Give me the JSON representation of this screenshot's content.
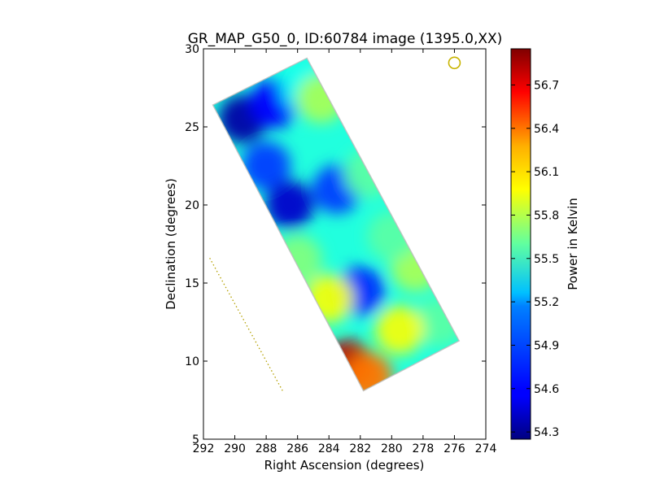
{
  "chart_data": {
    "type": "heatmap",
    "title": "GR_MAP_G50_0, ID:60784 image (1395.0,XX)",
    "xlabel": "Right Ascension (degrees)",
    "ylabel": "Declination (degrees)",
    "xlim": [
      292,
      274
    ],
    "ylim": [
      5,
      30
    ],
    "xticks": [
      "292",
      "290",
      "288",
      "286",
      "284",
      "282",
      "280",
      "278",
      "276",
      "274"
    ],
    "yticks": [
      "5",
      "10",
      "15",
      "20",
      "25",
      "30"
    ],
    "grid": false,
    "colormap": "jet",
    "colorbar": {
      "label": "Power in Kelvin",
      "range": [
        54.25,
        56.95
      ],
      "ticks": [
        "54.3",
        "54.6",
        "54.9",
        "55.2",
        "55.5",
        "55.8",
        "56.1",
        "56.4",
        "56.7"
      ]
    },
    "map_footprint": [
      [
        291.4,
        26.4
      ],
      [
        285.4,
        29.4
      ],
      [
        275.7,
        11.3
      ],
      [
        281.8,
        8.1
      ]
    ],
    "approx_values": [
      {
        "ra": 289.5,
        "dec": 25.5,
        "power": 54.35
      },
      {
        "ra": 287.5,
        "dec": 26.5,
        "power": 54.6
      },
      {
        "ra": 285.5,
        "dec": 27.5,
        "power": 55.3
      },
      {
        "ra": 284.5,
        "dec": 26.8,
        "power": 55.7
      },
      {
        "ra": 288.0,
        "dec": 22.5,
        "power": 54.75
      },
      {
        "ra": 286.5,
        "dec": 20.0,
        "power": 54.45
      },
      {
        "ra": 283.5,
        "dec": 21.0,
        "power": 54.75
      },
      {
        "ra": 281.5,
        "dec": 22.0,
        "power": 55.5
      },
      {
        "ra": 286.0,
        "dec": 16.5,
        "power": 55.6
      },
      {
        "ra": 282.0,
        "dec": 14.5,
        "power": 54.7
      },
      {
        "ra": 278.5,
        "dec": 16.0,
        "power": 55.7
      },
      {
        "ra": 280.0,
        "dec": 18.0,
        "power": 55.5
      },
      {
        "ra": 277.0,
        "dec": 12.5,
        "power": 55.5
      },
      {
        "ra": 279.5,
        "dec": 12.0,
        "power": 55.9
      },
      {
        "ra": 282.8,
        "dec": 9.8,
        "power": 56.8
      },
      {
        "ra": 281.5,
        "dec": 9.0,
        "power": 56.3
      },
      {
        "ra": 284.0,
        "dec": 14.0,
        "power": 55.9
      }
    ],
    "beam_marker": {
      "ra": 276.0,
      "dec": 29.1
    },
    "scan_track": {
      "from": [
        291.6,
        16.6
      ],
      "to": [
        286.9,
        8.0
      ]
    },
    "colors": {
      "marker": "#c8b400",
      "track": "#b4a000"
    }
  }
}
